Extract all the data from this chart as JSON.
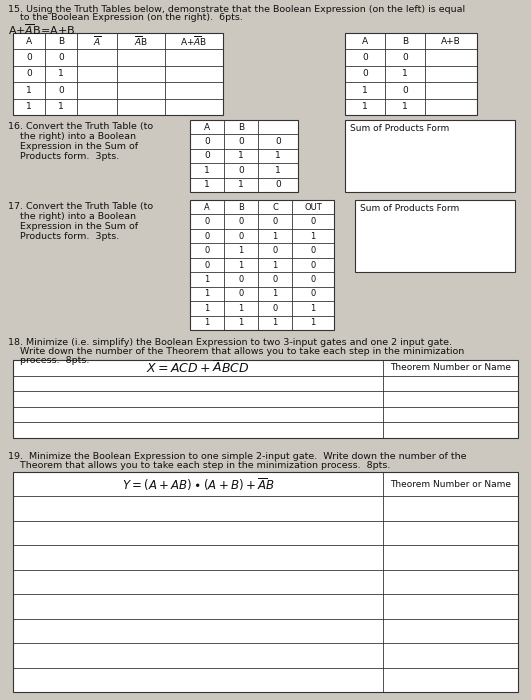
{
  "bg_color": "#ccc8c0",
  "white": "#ffffff",
  "text_color": "#111111",
  "line_color": "#333333",
  "figsize": [
    5.31,
    7.0
  ],
  "dpi": 100,
  "q15_line1": "15. Using the Truth Tables below, demonstrate that the Boolean Expression (on the left) is equal",
  "q15_line2": "    to the Boolean Expression (on the right).  6pts.",
  "q15_expr": "A+$\\overline{A}$B=A+B",
  "q16_line1": "16. Convert the Truth Table (to",
  "q16_line2": "    the right) into a Boolean",
  "q16_line3": "    Expression in the Sum of",
  "q16_line4": "    Products form.  3pts.",
  "q17_line1": "17. Convert the Truth Table (to",
  "q17_line2": "    the right) into a Boolean",
  "q17_line3": "    Expression in the Sum of",
  "q17_line4": "    Products form.  3pts.",
  "q18_line1": "18. Minimize (i.e. simplify) the Boolean Expression to two 3-input gates and one 2 input gate.",
  "q18_line2": "    Write down the number of the Theorem that allows you to take each step in the minimization",
  "q18_line3": "    process.  8pts.",
  "q19_line1": "19.  Minimize the Boolean Expression to one simple 2-input gate.  Write down the number of the",
  "q19_line2": "    Theorem that allows you to take each step in the minimization process.  8pts.",
  "t1_headers": [
    "A",
    "B",
    "A_bar",
    "A_barB",
    "A+A_barB"
  ],
  "t1_data": [
    [
      "0",
      "0",
      "",
      "",
      ""
    ],
    [
      "0",
      "1",
      "",
      "",
      ""
    ],
    [
      "1",
      "0",
      "",
      "",
      ""
    ],
    [
      "1",
      "1",
      "",
      "",
      ""
    ]
  ],
  "t2_headers": [
    "A",
    "B",
    "A+B"
  ],
  "t2_data": [
    [
      "0",
      "0",
      ""
    ],
    [
      "0",
      "1",
      ""
    ],
    [
      "1",
      "0",
      ""
    ],
    [
      "1",
      "1",
      ""
    ]
  ],
  "t3_data": [
    [
      "0",
      "0",
      "0"
    ],
    [
      "0",
      "1",
      "1"
    ],
    [
      "1",
      "0",
      "1"
    ],
    [
      "1",
      "1",
      "0"
    ]
  ],
  "t4_data": [
    [
      "0",
      "0",
      "0",
      "0"
    ],
    [
      "0",
      "0",
      "1",
      "1"
    ],
    [
      "0",
      "1",
      "0",
      "0"
    ],
    [
      "0",
      "1",
      "1",
      "0"
    ],
    [
      "1",
      "0",
      "0",
      "0"
    ],
    [
      "1",
      "0",
      "1",
      "0"
    ],
    [
      "1",
      "1",
      "0",
      "1"
    ],
    [
      "1",
      "1",
      "1",
      "1"
    ]
  ]
}
